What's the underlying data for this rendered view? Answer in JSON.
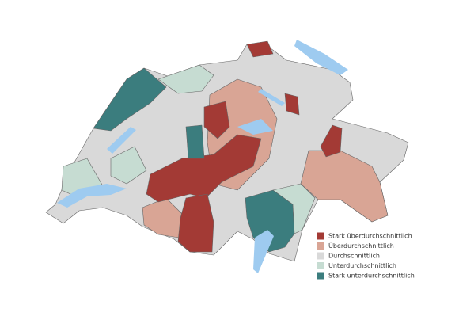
{
  "legend": {
    "items": [
      {
        "label": "Stark überdurchschnittlich",
        "color": "#a33a35"
      },
      {
        "label": "Überdurchschnittlich",
        "color": "#d9a595"
      },
      {
        "label": "Durchschnittlich",
        "color": "#d9d9d9"
      },
      {
        "label": "Unterdurchschnittlich",
        "color": "#c6dcd2"
      },
      {
        "label": "Stark unterdurchschnittlich",
        "color": "#3b7d7e"
      }
    ]
  }
}
